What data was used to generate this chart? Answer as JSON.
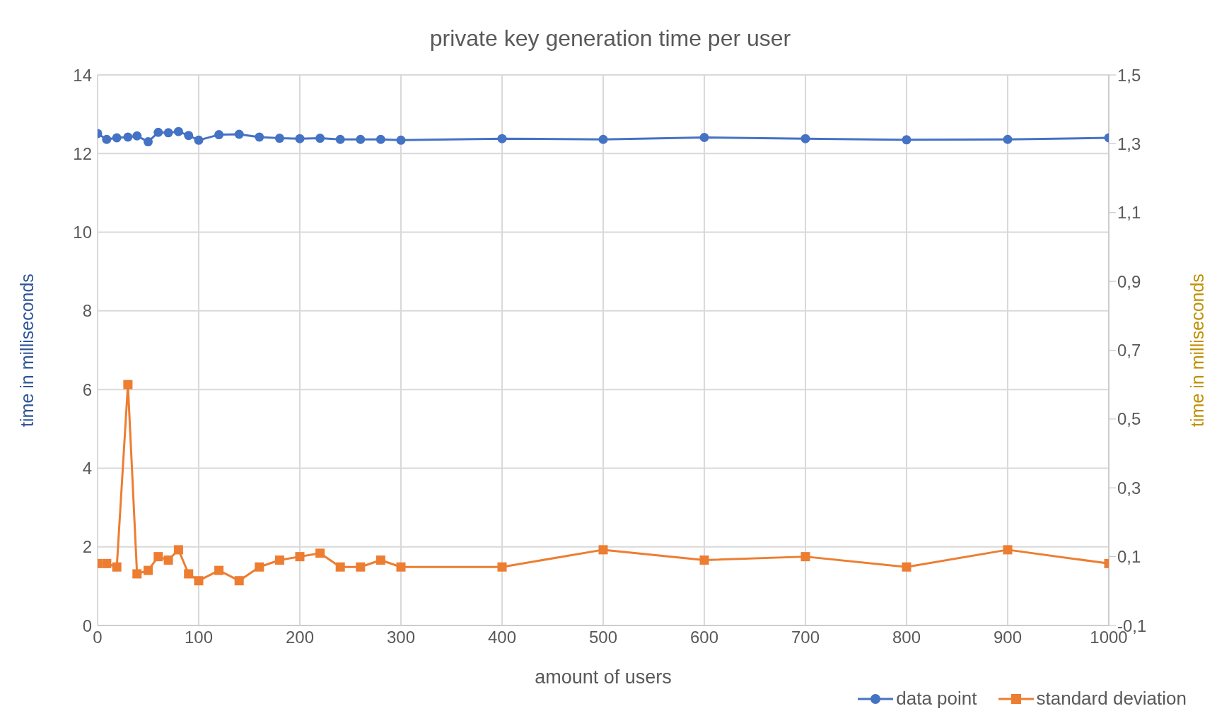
{
  "chart_data": {
    "type": "line",
    "title": "private key generation time per user",
    "xlabel": "amount of users",
    "ylabel": "time in milliseconds",
    "y2label": "time in milliseconds",
    "x": [
      0,
      9,
      19,
      30,
      39,
      50,
      60,
      70,
      80,
      90,
      100,
      120,
      140,
      160,
      180,
      200,
      220,
      240,
      260,
      280,
      300,
      400,
      500,
      600,
      700,
      800,
      900,
      1000
    ],
    "series": [
      {
        "name": "data point",
        "color": "#4472c4",
        "marker": "circle",
        "values": [
          12.51,
          12.36,
          12.4,
          12.42,
          12.45,
          12.3,
          12.54,
          12.53,
          12.56,
          12.46,
          12.34,
          12.48,
          12.49,
          12.42,
          12.39,
          12.38,
          12.39,
          12.36,
          12.36,
          12.36,
          12.34,
          12.38,
          12.36,
          12.41,
          12.38,
          12.35,
          12.36,
          12.4
        ]
      },
      {
        "name": "standard deviation",
        "color": "#ed7d31",
        "marker": "square",
        "axis": "y2",
        "values": [
          0.08,
          0.08,
          0.07,
          0.6,
          0.05,
          0.06,
          0.1,
          0.09,
          0.12,
          0.05,
          0.03,
          0.06,
          0.03,
          0.07,
          0.09,
          0.1,
          0.11,
          0.07,
          0.07,
          0.09,
          0.07,
          0.07,
          0.12,
          0.09,
          0.1,
          0.07,
          0.12,
          0.08
        ]
      }
    ],
    "xlim": [
      0,
      1000
    ],
    "xticks": [
      0,
      100,
      200,
      300,
      400,
      500,
      600,
      700,
      800,
      900,
      1000
    ],
    "ylim": [
      0,
      14
    ],
    "yticks": [
      0,
      2,
      4,
      6,
      8,
      10,
      12,
      14
    ],
    "y2lim": [
      -0.1,
      1.5
    ],
    "y2ticks": [
      {
        "value": -0.1,
        "label": "-0,1"
      },
      {
        "value": 0.1,
        "label": "0,1"
      },
      {
        "value": 0.3,
        "label": "0,3"
      },
      {
        "value": 0.5,
        "label": "0,5"
      },
      {
        "value": 0.7,
        "label": "0,7"
      },
      {
        "value": 0.9,
        "label": "0,9"
      },
      {
        "value": 1.1,
        "label": "1,1"
      },
      {
        "value": 1.3,
        "label": "1,3"
      },
      {
        "value": 1.5,
        "label": "1,5"
      }
    ],
    "grid": true,
    "legend": "bottom right",
    "line_style": "solid"
  }
}
